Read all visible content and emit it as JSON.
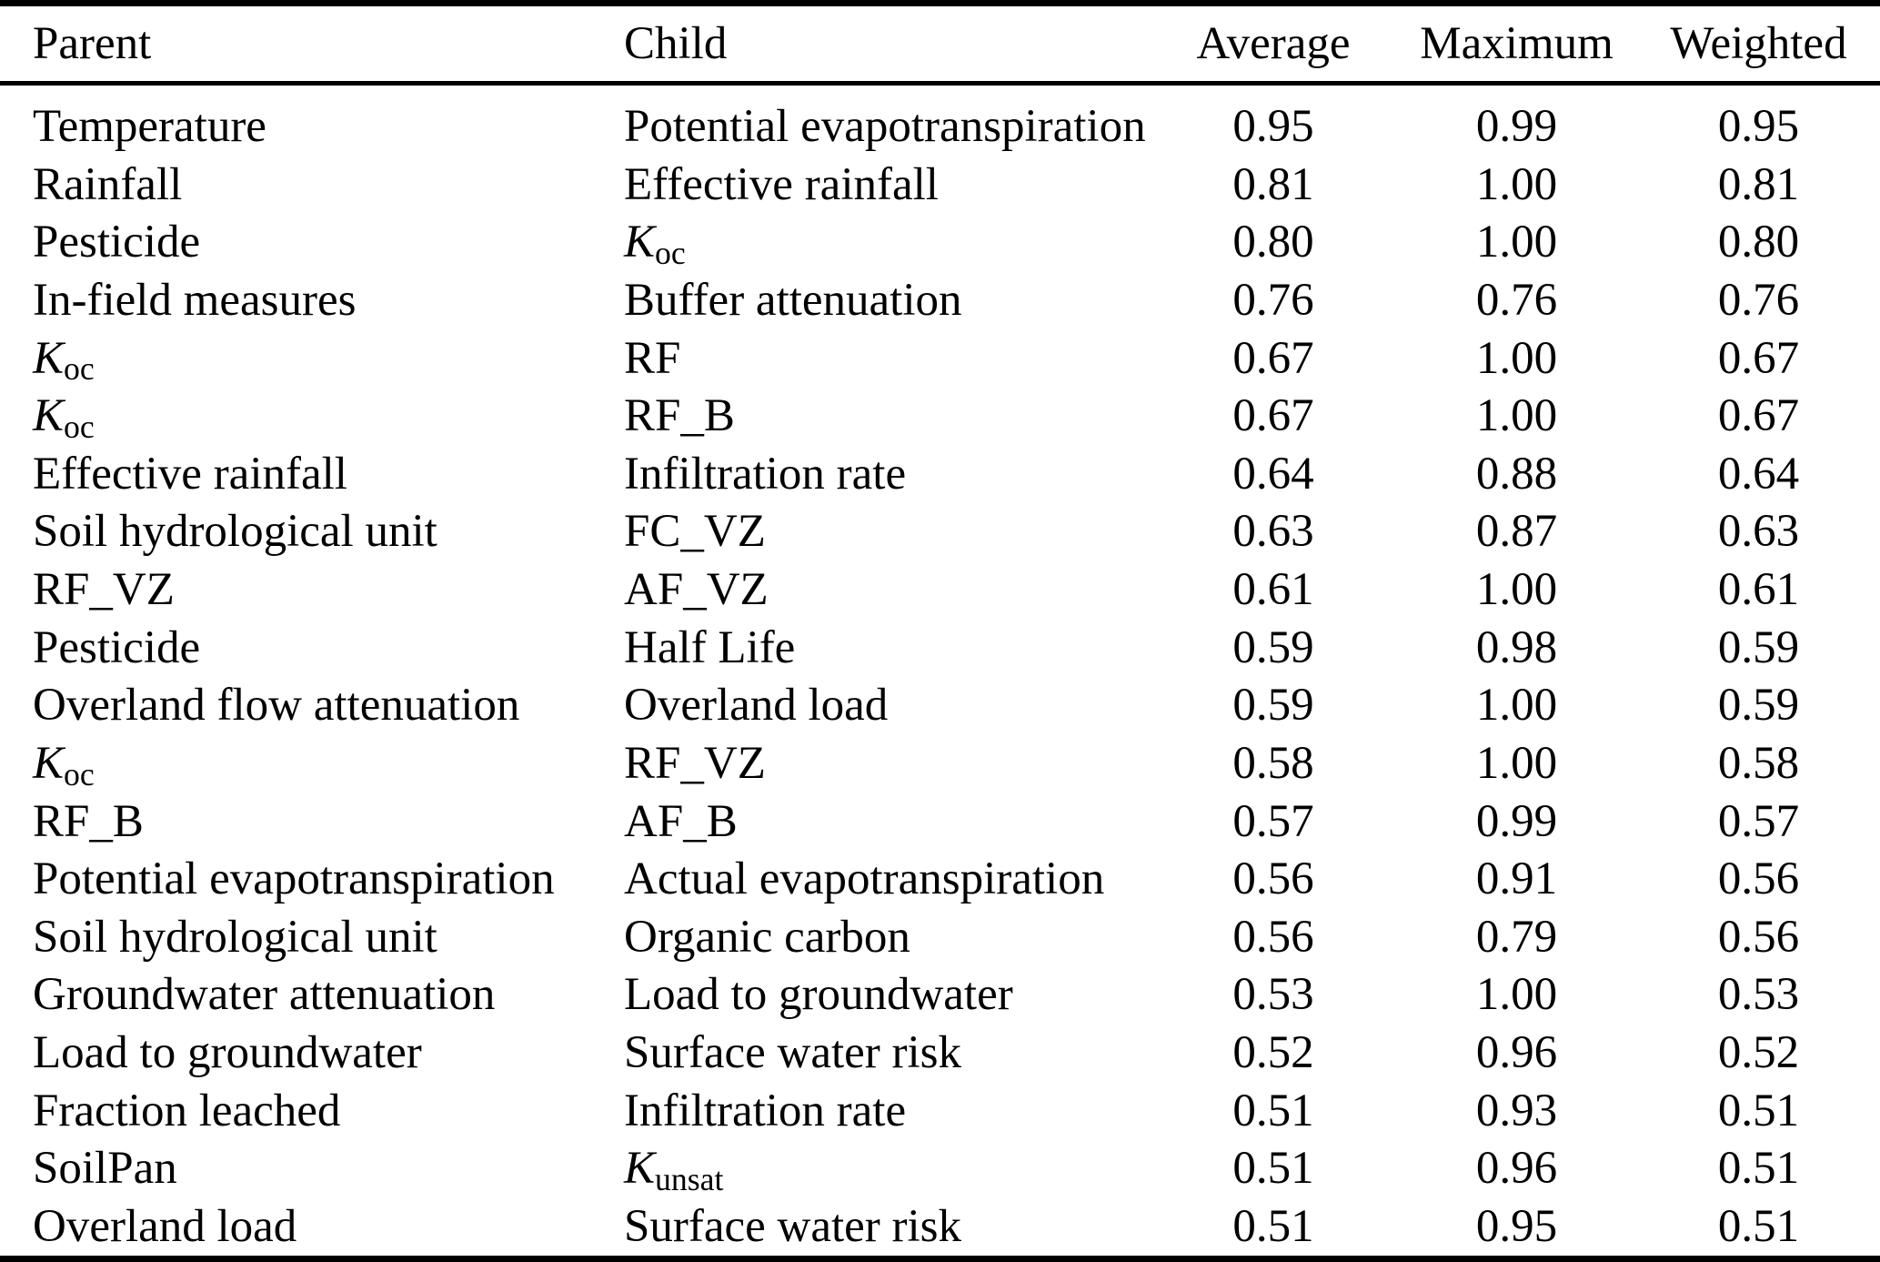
{
  "table": {
    "background_color": "#ffffff",
    "text_color": "#000000",
    "rule_color": "#000000",
    "columns": [
      "Parent",
      "Child",
      "Average",
      "Maximum",
      "Weighted"
    ],
    "rows": [
      {
        "parent": "Temperature",
        "child": "Potential evapotranspiration",
        "average": "0.95",
        "maximum": "0.99",
        "weighted": "0.95"
      },
      {
        "parent": "Rainfall",
        "child": "Effective rainfall",
        "average": "0.81",
        "maximum": "1.00",
        "weighted": "0.81"
      },
      {
        "parent": "Pesticide",
        "child": {
          "base": "K",
          "sub": "oc",
          "italic": true
        },
        "average": "0.80",
        "maximum": "1.00",
        "weighted": "0.80"
      },
      {
        "parent": "In-field measures",
        "child": "Buffer attenuation",
        "average": "0.76",
        "maximum": "0.76",
        "weighted": "0.76"
      },
      {
        "parent": {
          "base": "K",
          "sub": "oc",
          "italic": true
        },
        "child": "RF",
        "average": "0.67",
        "maximum": "1.00",
        "weighted": "0.67"
      },
      {
        "parent": {
          "base": "K",
          "sub": "oc",
          "italic": true
        },
        "child": "RF_B",
        "average": "0.67",
        "maximum": "1.00",
        "weighted": "0.67"
      },
      {
        "parent": "Effective rainfall",
        "child": "Infiltration rate",
        "average": "0.64",
        "maximum": "0.88",
        "weighted": "0.64"
      },
      {
        "parent": "Soil hydrological unit",
        "child": "FC_VZ",
        "average": "0.63",
        "maximum": "0.87",
        "weighted": "0.63"
      },
      {
        "parent": "RF_VZ",
        "child": "AF_VZ",
        "average": "0.61",
        "maximum": "1.00",
        "weighted": "0.61"
      },
      {
        "parent": "Pesticide",
        "child": "Half Life",
        "average": "0.59",
        "maximum": "0.98",
        "weighted": "0.59"
      },
      {
        "parent": "Overland flow attenuation",
        "child": "Overland load",
        "average": "0.59",
        "maximum": "1.00",
        "weighted": "0.59"
      },
      {
        "parent": {
          "base": "K",
          "sub": "oc",
          "italic": true
        },
        "child": "RF_VZ",
        "average": "0.58",
        "maximum": "1.00",
        "weighted": "0.58"
      },
      {
        "parent": "RF_B",
        "child": "AF_B",
        "average": "0.57",
        "maximum": "0.99",
        "weighted": "0.57"
      },
      {
        "parent": "Potential evapotranspiration",
        "child": "Actual evapotranspiration",
        "average": "0.56",
        "maximum": "0.91",
        "weighted": "0.56"
      },
      {
        "parent": "Soil hydrological unit",
        "child": "Organic carbon",
        "average": "0.56",
        "maximum": "0.79",
        "weighted": "0.56"
      },
      {
        "parent": "Groundwater attenuation",
        "child": "Load to groundwater",
        "average": "0.53",
        "maximum": "1.00",
        "weighted": "0.53"
      },
      {
        "parent": "Load to groundwater",
        "child": "Surface water risk",
        "average": "0.52",
        "maximum": "0.96",
        "weighted": "0.52"
      },
      {
        "parent": "Fraction leached",
        "child": "Infiltration rate",
        "average": "0.51",
        "maximum": "0.93",
        "weighted": "0.51"
      },
      {
        "parent": "SoilPan",
        "child": {
          "base": "K",
          "sub": "unsat",
          "italic": true
        },
        "average": "0.51",
        "maximum": "0.96",
        "weighted": "0.51"
      },
      {
        "parent": "Overland load",
        "child": "Surface water risk",
        "average": "0.51",
        "maximum": "0.95",
        "weighted": "0.51"
      }
    ]
  }
}
